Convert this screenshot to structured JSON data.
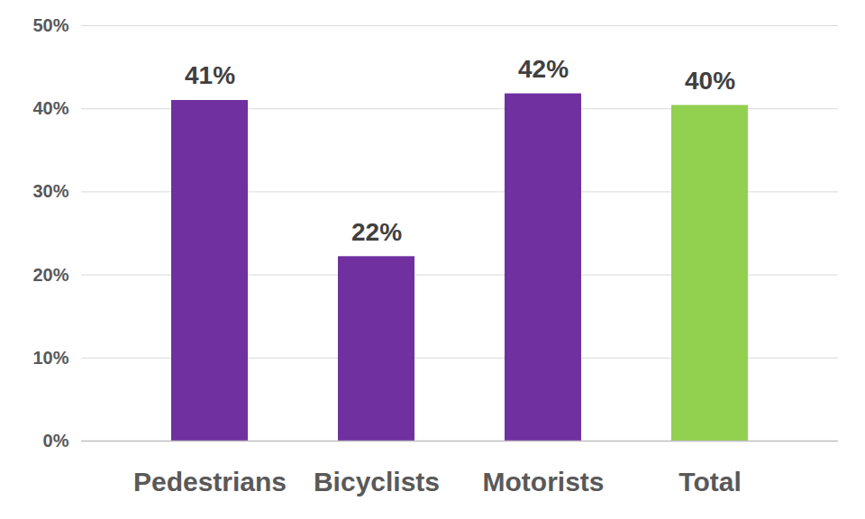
{
  "chart_data": {
    "type": "bar",
    "categories": [
      "Pedestrians",
      "Bicyclists",
      "Motorists",
      "Total"
    ],
    "values": [
      41,
      22.2,
      41.8,
      40.4
    ],
    "value_labels": [
      "41%",
      "22%",
      "42%",
      "40%"
    ],
    "colors": [
      "#7030a0",
      "#7030a0",
      "#7030a0",
      "#92d050"
    ],
    "ylim": [
      0,
      50
    ],
    "yticks": [
      {
        "value": 0,
        "label": "0%"
      },
      {
        "value": 10,
        "label": "10%"
      },
      {
        "value": 20,
        "label": "20%"
      },
      {
        "value": 30,
        "label": "30%"
      },
      {
        "value": 40,
        "label": "40%"
      },
      {
        "value": 50,
        "label": "50%"
      }
    ],
    "grid": true,
    "data_labels": true
  }
}
